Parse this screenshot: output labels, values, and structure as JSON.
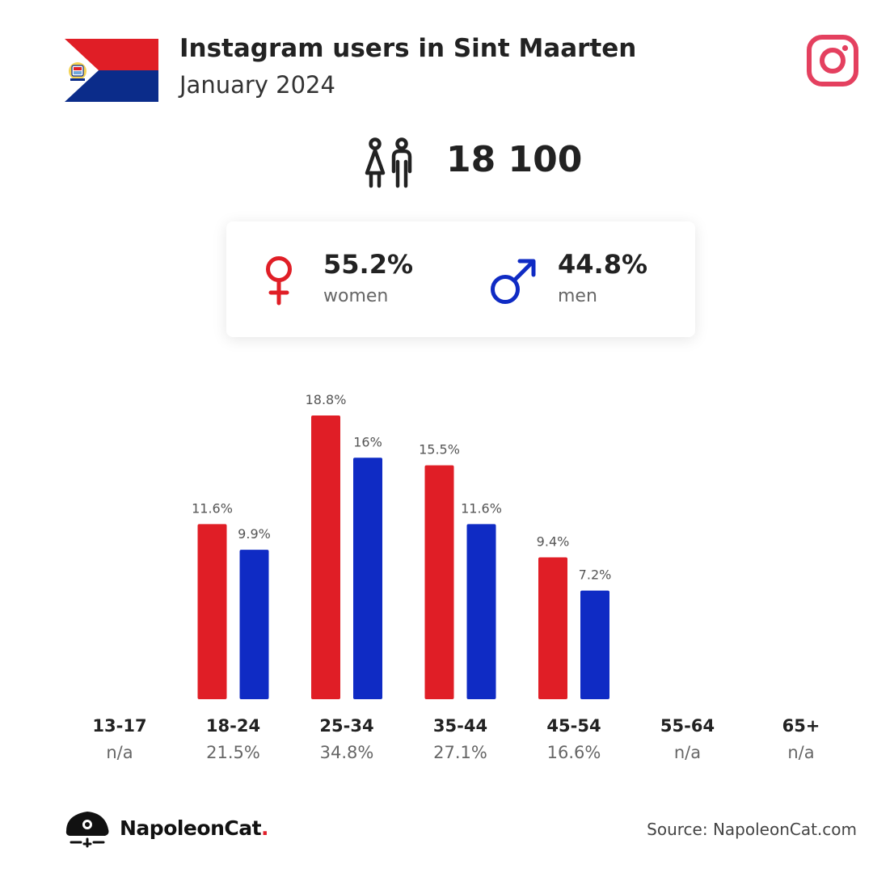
{
  "header": {
    "title": "Instagram users in Sint Maarten",
    "subtitle": "January 2024",
    "flag_icon": "sint-maarten-flag-icon",
    "logo_icon": "instagram-logo-icon"
  },
  "total": {
    "value": "18 100",
    "icon": "users-couple-icon"
  },
  "gender": {
    "women": {
      "pct": "55.2%",
      "label": "women",
      "icon": "female-symbol-icon"
    },
    "men": {
      "pct": "44.8%",
      "label": "men",
      "icon": "male-symbol-icon"
    }
  },
  "colors": {
    "women": "#e01e26",
    "men": "#0f2bc4",
    "instagram": "#e4405f",
    "flag_red": "#e01e26",
    "flag_blue": "#0b2c8a"
  },
  "chart_data": {
    "type": "bar",
    "categories": [
      "13-17",
      "18-24",
      "25-34",
      "35-44",
      "45-54",
      "55-64",
      "65+"
    ],
    "category_shares": [
      "n/a",
      "21.5%",
      "34.8%",
      "27.1%",
      "16.6%",
      "n/a",
      "n/a"
    ],
    "series": [
      {
        "key": "women",
        "values": [
          null,
          11.6,
          18.8,
          15.5,
          9.4,
          null,
          null
        ],
        "labels": [
          "",
          "11.6%",
          "18.8%",
          "15.5%",
          "9.4%",
          "",
          ""
        ]
      },
      {
        "key": "men",
        "values": [
          null,
          9.9,
          16.0,
          11.6,
          7.2,
          null,
          null
        ],
        "labels": [
          "",
          "9.9%",
          "16%",
          "11.6%",
          "7.2%",
          "",
          ""
        ]
      }
    ],
    "ylim": [
      0,
      18.8
    ],
    "grid": false,
    "legend": "none"
  },
  "footer": {
    "brand": "NapoleonCat",
    "brand_dot": ".",
    "source": "Source: NapoleonCat.com"
  }
}
